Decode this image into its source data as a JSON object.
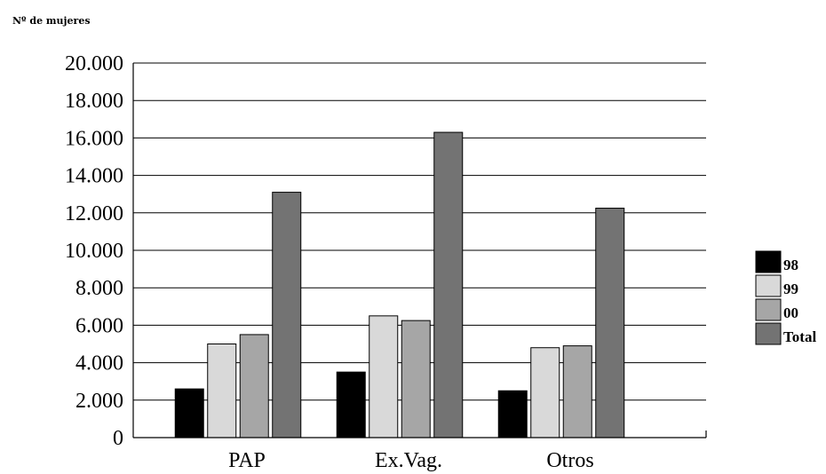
{
  "chart_data": {
    "type": "bar",
    "ylabel": "Nº de mujeres",
    "categories": [
      "PAP",
      "Ex.Vag.",
      "Otros"
    ],
    "series": [
      {
        "name": "98",
        "values": [
          2600,
          3500,
          2500
        ],
        "color": "#000000"
      },
      {
        "name": "99",
        "values": [
          5000,
          6500,
          4800
        ],
        "color": "#d9d9d9"
      },
      {
        "name": "00",
        "values": [
          5500,
          6250,
          4900
        ],
        "color": "#a6a6a6"
      },
      {
        "name": "Total",
        "values": [
          13100,
          16300,
          12250
        ],
        "color": "#737373"
      }
    ],
    "ylim": [
      0,
      20000
    ],
    "yticks": [
      "0",
      "2.000",
      "4.000",
      "6.000",
      "8.000",
      "10.000",
      "12.000",
      "14.000",
      "16.000",
      "18.000",
      "20.000"
    ],
    "grid": true,
    "legend_position": "right"
  }
}
